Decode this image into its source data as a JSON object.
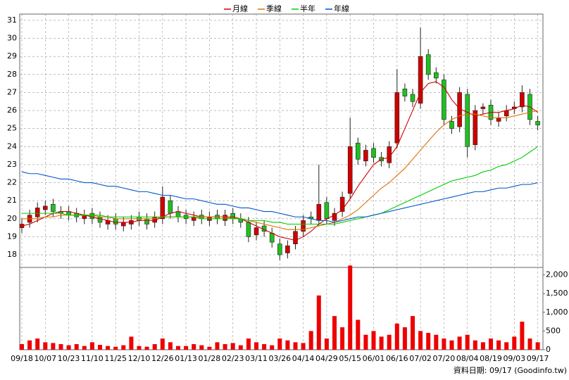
{
  "chart_data": {
    "type": "candlestick",
    "categories": [
      "09/18",
      null,
      null,
      "10/07",
      null,
      null,
      "10/23",
      null,
      null,
      "11/10",
      null,
      null,
      "11/25",
      null,
      null,
      "12/10",
      null,
      null,
      "12/26",
      null,
      null,
      "01/13",
      null,
      null,
      "01/28",
      null,
      null,
      "02/23",
      null,
      null,
      "03/11",
      null,
      null,
      "03/26",
      null,
      null,
      "04/14",
      null,
      null,
      "04/29",
      null,
      null,
      "05/15",
      null,
      null,
      "06/01",
      null,
      null,
      "06/16",
      null,
      null,
      "07/02",
      null,
      null,
      "07/20",
      null,
      null,
      "08/04",
      null,
      null,
      "08/19",
      null,
      null,
      "09/03",
      null,
      null,
      "09/17"
    ],
    "open": [
      19.5,
      19.8,
      20.1,
      20.5,
      20.8,
      20.4,
      20.4,
      20.3,
      20.0,
      20.3,
      20.1,
      19.7,
      20.0,
      19.6,
      19.7,
      20.1,
      20.0,
      19.8,
      20.0,
      21.0,
      20.4,
      20.2,
      19.9,
      20.2,
      19.9,
      20.2,
      19.9,
      20.3,
      20.0,
      19.8,
      19.1,
      19.6,
      19.2,
      18.6,
      18.1,
      18.6,
      19.3,
      20.1,
      19.9,
      20.9,
      19.9,
      20.4,
      21.4,
      24.2,
      23.2,
      23.9,
      23.4,
      23.1,
      24.2,
      27.2,
      26.9,
      26.4,
      29.1,
      28.1,
      27.7,
      25.4,
      25.1,
      26.9,
      24.1,
      26.1,
      26.3,
      25.4,
      25.7,
      26.1,
      26.2,
      26.9,
      25.4
    ],
    "high": [
      20.0,
      20.5,
      20.9,
      21.0,
      21.1,
      20.7,
      20.7,
      20.6,
      20.5,
      20.6,
      20.4,
      20.2,
      20.3,
      20.1,
      20.2,
      20.4,
      20.3,
      20.4,
      21.8,
      21.3,
      20.7,
      20.5,
      20.4,
      20.5,
      20.4,
      20.5,
      20.5,
      20.6,
      20.3,
      20.1,
      19.8,
      19.9,
      19.5,
      18.9,
      18.8,
      19.6,
      20.2,
      20.4,
      23.0,
      21.2,
      20.6,
      21.5,
      25.6,
      24.5,
      24.1,
      24.2,
      23.7,
      24.3,
      28.3,
      27.5,
      27.2,
      30.6,
      29.4,
      28.4,
      28.0,
      25.7,
      27.3,
      27.2,
      26.3,
      26.4,
      26.6,
      25.9,
      26.3,
      26.5,
      27.4,
      27.2,
      25.7
    ],
    "low": [
      19.2,
      19.5,
      19.8,
      20.2,
      20.1,
      20.0,
      19.9,
      19.8,
      19.7,
      19.7,
      19.5,
      19.4,
      19.4,
      19.3,
      19.4,
      19.6,
      19.4,
      19.5,
      19.7,
      20.0,
      19.8,
      19.7,
      19.6,
      19.7,
      19.6,
      19.7,
      19.6,
      19.7,
      19.5,
      18.7,
      18.8,
      19.0,
      18.4,
      17.7,
      17.8,
      18.3,
      19.0,
      19.7,
      19.6,
      19.7,
      19.6,
      20.1,
      21.1,
      23.0,
      22.9,
      23.1,
      22.9,
      22.8,
      23.9,
      26.5,
      26.2,
      26.1,
      27.7,
      27.5,
      25.2,
      24.7,
      24.8,
      23.4,
      23.8,
      25.8,
      25.2,
      25.1,
      25.4,
      25.8,
      25.9,
      25.2,
      24.9
    ],
    "close": [
      19.7,
      20.2,
      20.6,
      20.7,
      20.4,
      20.3,
      20.2,
      20.1,
      20.2,
      20.0,
      19.8,
      19.9,
      19.7,
      19.8,
      19.9,
      19.9,
      19.7,
      20.1,
      21.2,
      20.3,
      20.1,
      20.0,
      20.1,
      20.0,
      20.1,
      20.0,
      20.2,
      20.0,
      19.8,
      19.0,
      19.5,
      19.3,
      18.7,
      18.0,
      18.5,
      19.3,
      19.9,
      20.0,
      20.8,
      20.0,
      20.3,
      21.2,
      24.0,
      23.3,
      23.8,
      23.4,
      23.2,
      24.0,
      27.0,
      26.8,
      26.5,
      29.0,
      28.0,
      27.8,
      25.5,
      25.0,
      27.0,
      24.0,
      26.0,
      26.2,
      25.5,
      25.6,
      26.0,
      26.2,
      27.0,
      25.5,
      25.2
    ],
    "volume": [
      150,
      250,
      300,
      200,
      180,
      150,
      120,
      150,
      100,
      200,
      130,
      100,
      80,
      120,
      350,
      100,
      80,
      150,
      300,
      200,
      100,
      100,
      150,
      120,
      80,
      200,
      150,
      180,
      120,
      300,
      200,
      150,
      120,
      300,
      250,
      200,
      180,
      500,
      1450,
      300,
      900,
      600,
      2250,
      800,
      400,
      500,
      350,
      400,
      700,
      600,
      900,
      500,
      450,
      400,
      300,
      250,
      350,
      400,
      250,
      200,
      300,
      250,
      200,
      350,
      750,
      300,
      200
    ],
    "up_color": "#d00000",
    "down_color": "#20c020",
    "volume_color": "#ee0000",
    "series": [
      {
        "name": "月線",
        "color": "#cc0000",
        "values": [
          19.6,
          19.7,
          19.9,
          20.1,
          20.3,
          20.4,
          20.4,
          20.3,
          20.2,
          20.1,
          20.0,
          19.9,
          19.8,
          19.8,
          19.8,
          19.9,
          19.9,
          19.9,
          20.1,
          20.3,
          20.4,
          20.3,
          20.2,
          20.1,
          20.1,
          20.1,
          20.1,
          20.1,
          20.0,
          19.8,
          19.6,
          19.4,
          19.2,
          19.0,
          18.9,
          18.8,
          19.0,
          19.3,
          19.7,
          20.0,
          20.2,
          20.5,
          21.1,
          21.8,
          22.4,
          23.0,
          23.3,
          23.4,
          24.0,
          25.0,
          26.0,
          27.0,
          27.5,
          27.6,
          27.3,
          26.6,
          26.1,
          25.9,
          25.7,
          25.8,
          25.9,
          25.9,
          26.0,
          26.1,
          26.3,
          26.2,
          25.9
        ]
      },
      {
        "name": "季線",
        "color": "#e07000",
        "values": [
          20.0,
          20.0,
          20.0,
          20.1,
          20.1,
          20.2,
          20.2,
          20.2,
          20.2,
          20.2,
          20.1,
          20.1,
          20.0,
          20.0,
          20.0,
          20.0,
          20.0,
          20.0,
          20.1,
          20.1,
          20.1,
          20.1,
          20.1,
          20.1,
          20.1,
          20.1,
          20.1,
          20.0,
          20.0,
          19.9,
          19.8,
          19.7,
          19.6,
          19.5,
          19.4,
          19.4,
          19.4,
          19.5,
          19.6,
          19.7,
          19.8,
          20.0,
          20.2,
          20.5,
          20.9,
          21.3,
          21.7,
          22.0,
          22.4,
          22.8,
          23.3,
          23.8,
          24.3,
          24.8,
          25.2,
          25.5,
          25.7,
          25.8,
          25.8,
          25.7,
          25.6,
          25.6,
          25.6,
          25.7,
          25.8,
          25.9,
          26.0
        ]
      },
      {
        "name": "半年",
        "color": "#00cc00",
        "values": [
          20.3,
          20.3,
          20.3,
          20.3,
          20.3,
          20.3,
          20.2,
          20.2,
          20.2,
          20.2,
          20.2,
          20.1,
          20.1,
          20.1,
          20.1,
          20.1,
          20.1,
          20.1,
          20.1,
          20.1,
          20.1,
          20.1,
          20.1,
          20.0,
          20.0,
          20.0,
          20.0,
          20.0,
          20.0,
          19.9,
          19.9,
          19.9,
          19.8,
          19.8,
          19.7,
          19.7,
          19.7,
          19.7,
          19.7,
          19.7,
          19.7,
          19.8,
          19.9,
          20.0,
          20.1,
          20.2,
          20.3,
          20.5,
          20.7,
          20.9,
          21.1,
          21.3,
          21.5,
          21.7,
          21.9,
          22.1,
          22.2,
          22.3,
          22.4,
          22.6,
          22.7,
          22.9,
          23.0,
          23.2,
          23.4,
          23.7,
          24.0
        ]
      },
      {
        "name": "年線",
        "color": "#0055cc",
        "values": [
          22.6,
          22.5,
          22.5,
          22.4,
          22.3,
          22.2,
          22.2,
          22.1,
          22.0,
          22.0,
          21.9,
          21.8,
          21.8,
          21.7,
          21.6,
          21.5,
          21.5,
          21.4,
          21.3,
          21.3,
          21.2,
          21.1,
          21.1,
          21.0,
          20.9,
          20.8,
          20.8,
          20.7,
          20.6,
          20.6,
          20.5,
          20.4,
          20.4,
          20.3,
          20.2,
          20.1,
          20.1,
          20.0,
          19.9,
          19.9,
          19.8,
          19.9,
          20.0,
          20.1,
          20.1,
          20.2,
          20.3,
          20.4,
          20.5,
          20.6,
          20.7,
          20.8,
          20.9,
          21.0,
          21.1,
          21.2,
          21.3,
          21.4,
          21.5,
          21.5,
          21.6,
          21.7,
          21.7,
          21.8,
          21.9,
          21.9,
          22.0
        ]
      }
    ],
    "ylim": [
      17.3,
      31.35
    ],
    "yticks": [
      18,
      19,
      20,
      21,
      22,
      23,
      24,
      25,
      26,
      27,
      28,
      29,
      30,
      31
    ],
    "volume_ylim": [
      0,
      2200
    ],
    "volume_yticks": [
      0,
      500,
      {
        "value": 1000,
        "label": "1,000"
      },
      {
        "value": 1500,
        "label": "1,500"
      },
      {
        "value": 2000,
        "label": "2,000"
      }
    ],
    "grid": true,
    "source": "資料日期: 09/17  (Goodinfo.tw)"
  }
}
